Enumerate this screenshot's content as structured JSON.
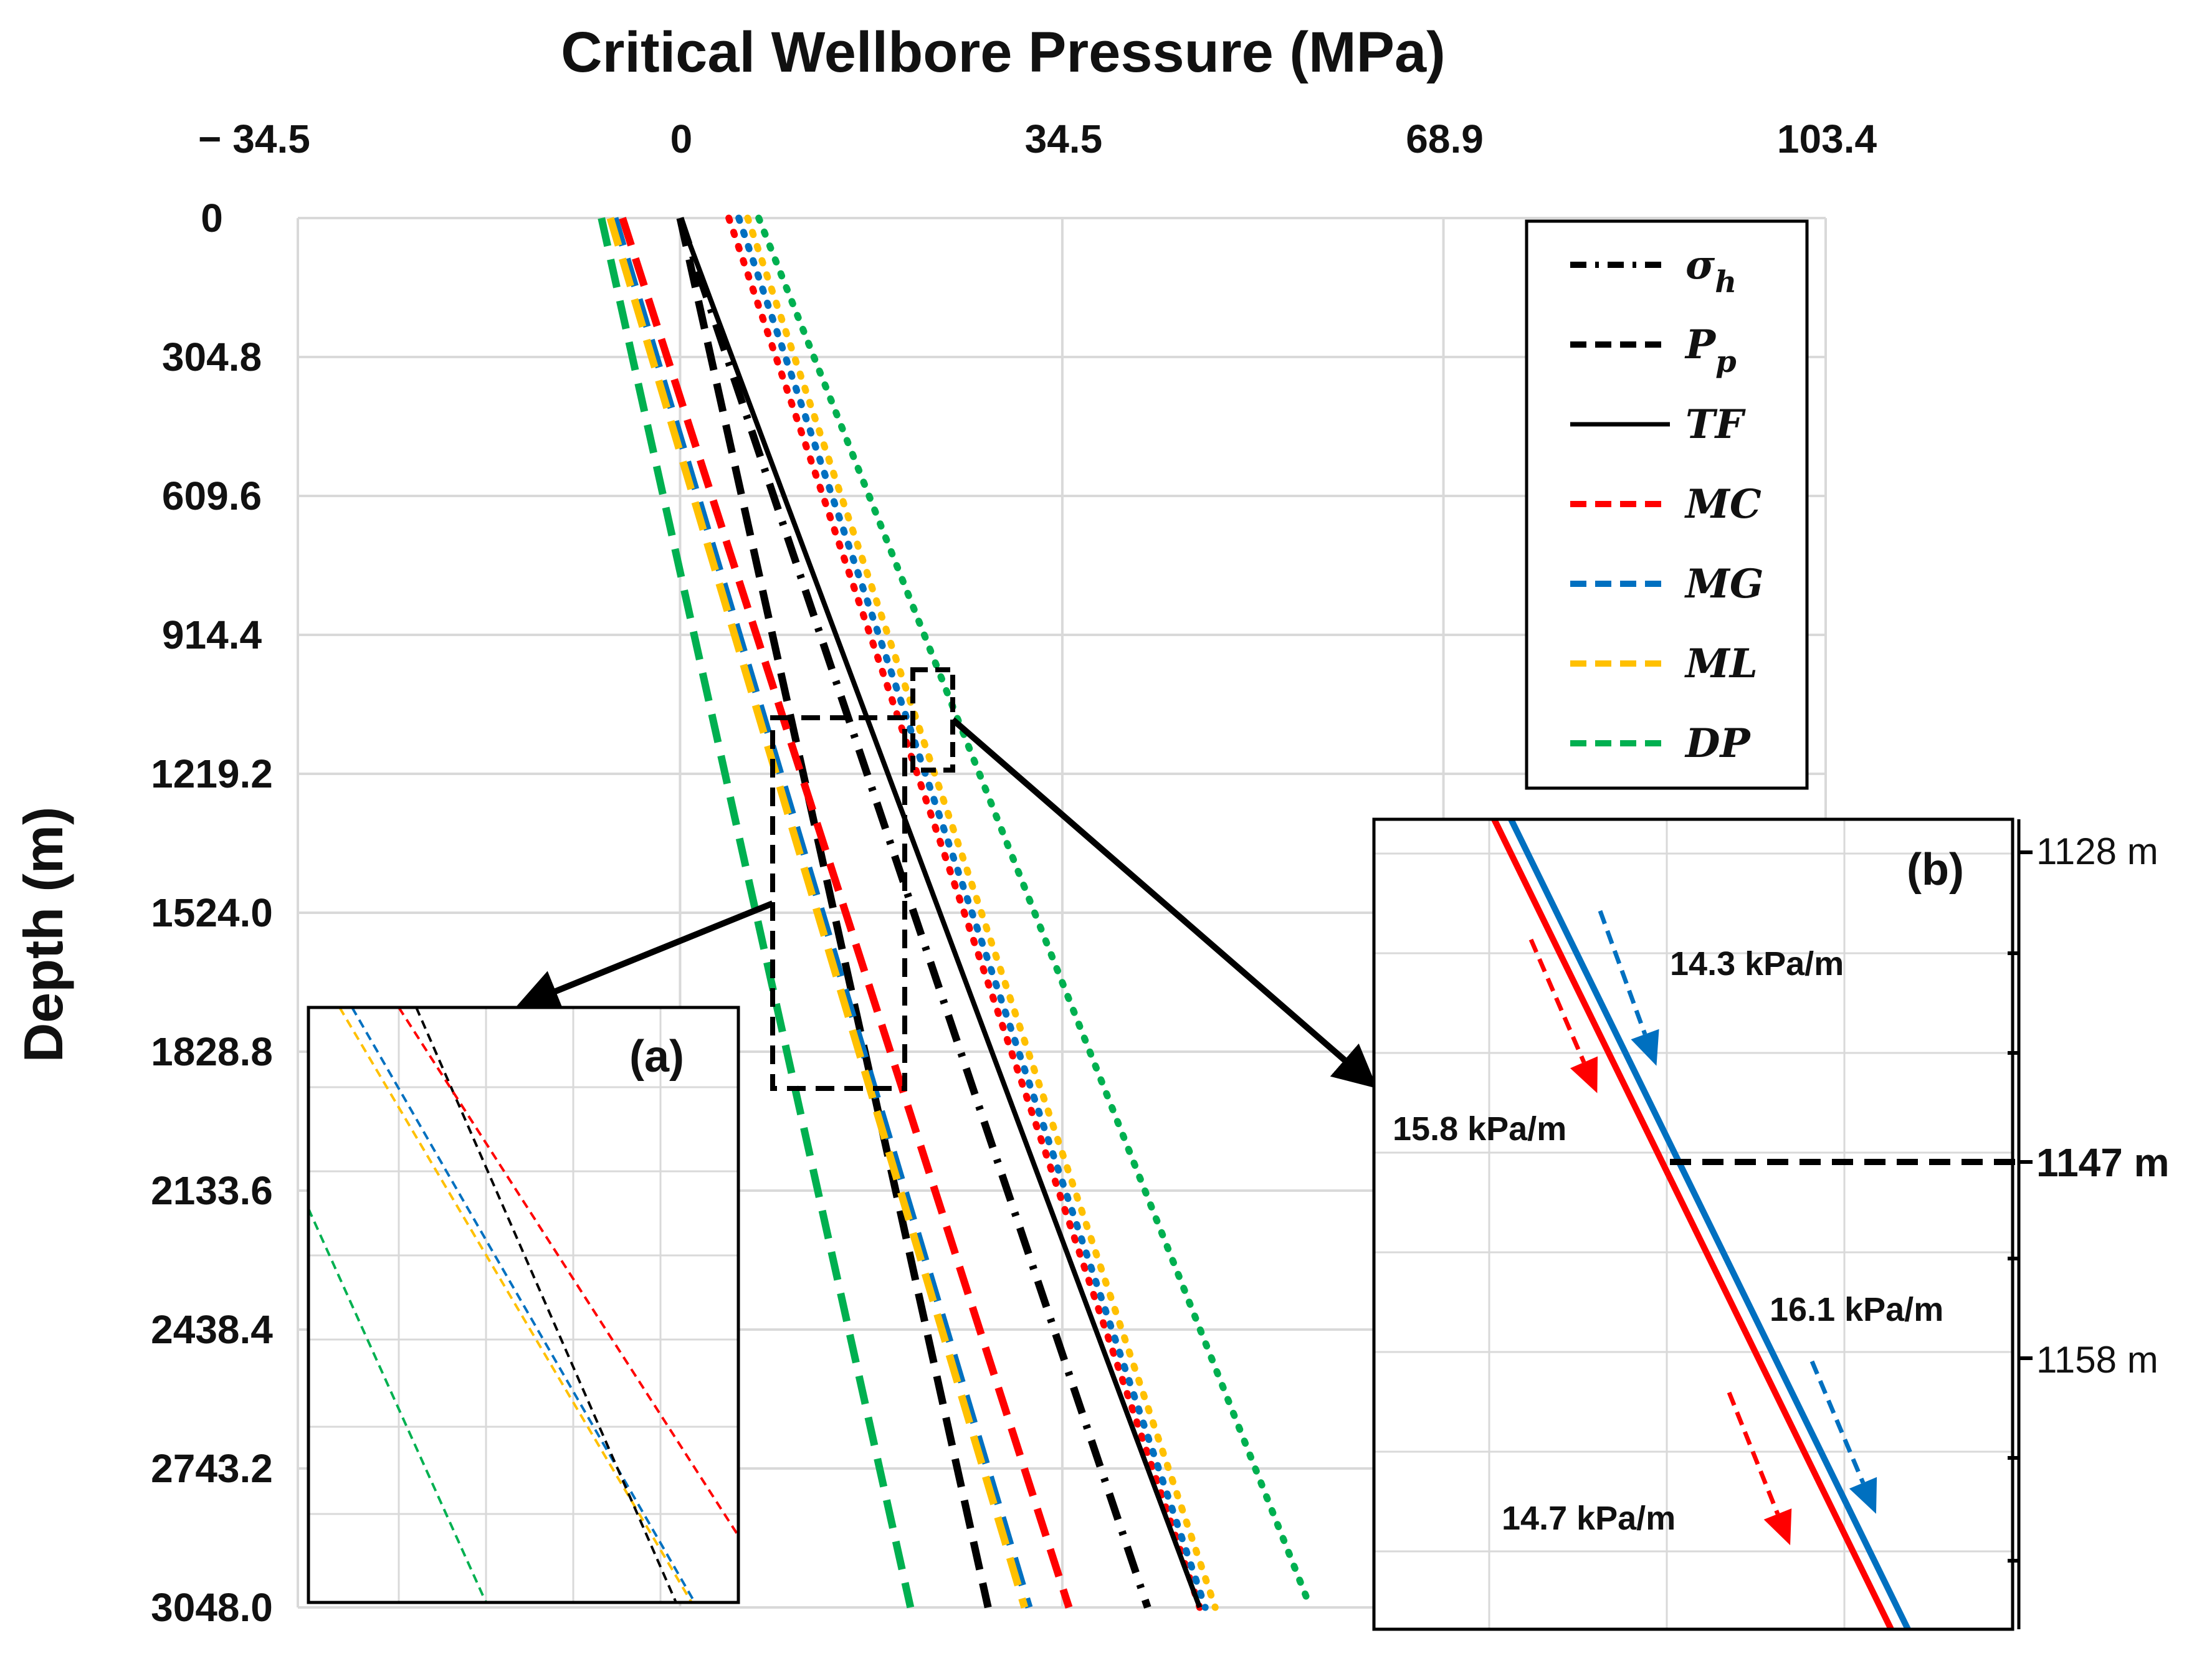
{
  "chart_data": {
    "type": "line",
    "title": "Critical Wellbore Pressure (MPa)",
    "xlabel": "Critical Wellbore Pressure (MPa)",
    "ylabel": "Depth (m)",
    "x_ticks": [
      "− 34.5",
      "0",
      "34.5",
      "68.9",
      "103.4"
    ],
    "x_tick_values": [
      -34.5,
      0,
      34.5,
      68.9,
      103.4
    ],
    "y_ticks": [
      "0",
      "304.8",
      "609.6",
      "914.4",
      "1219.2",
      "1524.0",
      "1828.8",
      "2133.6",
      "2438.4",
      "2743.2",
      "3048.0"
    ],
    "xlim": [
      -34.5,
      103.4
    ],
    "ylim": [
      0,
      3048.0
    ],
    "grid": true,
    "legend_position": "top-right",
    "series": [
      {
        "name": "σh",
        "label": "σ",
        "sub": "h",
        "color": "#000000",
        "style": "dashdot",
        "points": [
          [
            0,
            0
          ],
          [
            42.2,
            3048
          ]
        ]
      },
      {
        "name": "Pp",
        "label": "P",
        "sub": "p",
        "color": "#000000",
        "style": "dash",
        "points": [
          [
            0,
            0
          ],
          [
            27.8,
            3048
          ]
        ]
      },
      {
        "name": "TF",
        "label": "TF",
        "color": "#000000",
        "style": "solid",
        "points": [
          [
            0,
            0
          ],
          [
            46.9,
            3048
          ]
        ]
      },
      {
        "name": "MC",
        "label": "MC",
        "color": "#ff0000",
        "style": "dash",
        "points": [
          [
            -5.2,
            0
          ],
          [
            35.1,
            3048
          ]
        ]
      },
      {
        "name": "MG",
        "label": "MG",
        "color": "#0070c0",
        "style": "dash",
        "points": [
          [
            -5.9,
            0
          ],
          [
            31.5,
            3048
          ]
        ]
      },
      {
        "name": "ML",
        "label": "ML",
        "color": "#ffc000",
        "style": "dash",
        "points": [
          [
            -6.3,
            0
          ],
          [
            31.1,
            3048
          ]
        ]
      },
      {
        "name": "DP",
        "label": "DP",
        "color": "#00b050",
        "style": "dash",
        "points": [
          [
            -7.1,
            0
          ],
          [
            20.8,
            3048
          ]
        ]
      },
      {
        "name": "MC upper",
        "color": "#ff0000",
        "style": "dot",
        "points": [
          [
            4.4,
            0
          ],
          [
            46.9,
            3048
          ]
        ]
      },
      {
        "name": "MG upper",
        "color": "#0070c0",
        "style": "dot",
        "points": [
          [
            5.3,
            0
          ],
          [
            47.4,
            3048
          ]
        ]
      },
      {
        "name": "ML upper",
        "color": "#ffc000",
        "style": "dot",
        "points": [
          [
            6.1,
            0
          ],
          [
            48.3,
            3048
          ]
        ]
      },
      {
        "name": "DP upper",
        "color": "#00b050",
        "style": "dot",
        "points": [
          [
            7.1,
            0
          ],
          [
            56.9,
            3048
          ]
        ]
      }
    ],
    "inset_a": {
      "label": "(a)"
    },
    "inset_b": {
      "label": "(b)",
      "depth_ticks": [
        "1128 m",
        "1147 m",
        "1158 m"
      ],
      "annotations": [
        "14.3 kPa/m",
        "15.8 kPa/m",
        "16.1 kPa/m",
        "14.7 kPa/m"
      ]
    }
  }
}
